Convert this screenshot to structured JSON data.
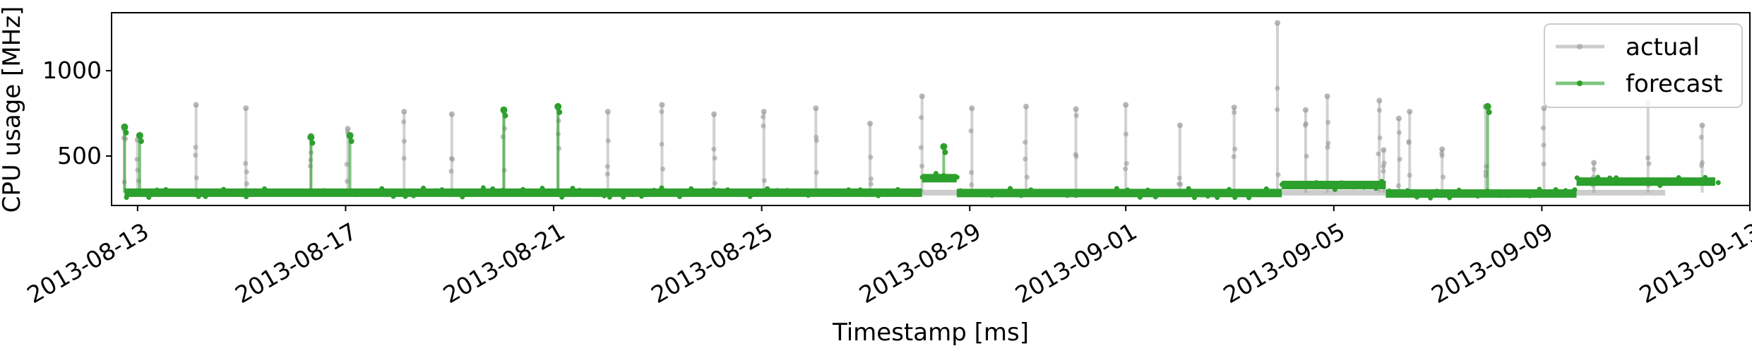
{
  "chart_data": {
    "type": "line",
    "xlabel": "Timestamp [ms]",
    "ylabel": "CPU usage [MHz]",
    "x_range": [
      "2013-08-12T12:00",
      "2013-09-13T00:00"
    ],
    "ylim": [
      210,
      1340
    ],
    "x_ticks": [
      "2013-08-13",
      "2013-08-17",
      "2013-08-21",
      "2013-08-25",
      "2013-08-29",
      "2013-09-01",
      "2013-09-05",
      "2013-09-09",
      "2013-09-13"
    ],
    "y_ticks": [
      500,
      1000
    ],
    "grid": false,
    "legend": {
      "position": "top-right",
      "entries": [
        "actual",
        "forecast"
      ]
    },
    "series": [
      {
        "name": "actual",
        "color": "#999999",
        "baseline": 285,
        "spikes": [
          {
            "x": "2013-08-12T18:00",
            "y": 655
          },
          {
            "x": "2013-08-13T00:00",
            "y": 595
          },
          {
            "x": "2013-08-14T03:00",
            "y": 800
          },
          {
            "x": "2013-08-15T02:00",
            "y": 780
          },
          {
            "x": "2013-08-16T08:00",
            "y": 620
          },
          {
            "x": "2013-08-17T01:00",
            "y": 660
          },
          {
            "x": "2013-08-18T03:00",
            "y": 760
          },
          {
            "x": "2013-08-19T01:00",
            "y": 745
          },
          {
            "x": "2013-08-20T01:00",
            "y": 760
          },
          {
            "x": "2013-08-21T02:00",
            "y": 780
          },
          {
            "x": "2013-08-22T01:00",
            "y": 760
          },
          {
            "x": "2013-08-23T02:00",
            "y": 800
          },
          {
            "x": "2013-08-24T02:00",
            "y": 745
          },
          {
            "x": "2013-08-25T01:00",
            "y": 760
          },
          {
            "x": "2013-08-26T01:00",
            "y": 780
          },
          {
            "x": "2013-08-27T02:00",
            "y": 690
          },
          {
            "x": "2013-08-28T02:00",
            "y": 850
          },
          {
            "x": "2013-08-29T01:00",
            "y": 780
          },
          {
            "x": "2013-08-30T02:00",
            "y": 790
          },
          {
            "x": "2013-08-31T01:00",
            "y": 775
          },
          {
            "x": "2013-09-01T00:00",
            "y": 800
          },
          {
            "x": "2013-09-02T01:00",
            "y": 680
          },
          {
            "x": "2013-09-03T02:00",
            "y": 785
          },
          {
            "x": "2013-09-03T22:00",
            "y": 1280
          },
          {
            "x": "2013-09-04T11:00",
            "y": 770
          },
          {
            "x": "2013-09-04T21:00",
            "y": 850
          },
          {
            "x": "2013-09-05T21:00",
            "y": 825
          },
          {
            "x": "2013-09-05T23:00",
            "y": 535
          },
          {
            "x": "2013-09-06T06:00",
            "y": 720
          },
          {
            "x": "2013-09-06T11:00",
            "y": 760
          },
          {
            "x": "2013-09-07T02:00",
            "y": 540
          },
          {
            "x": "2013-09-07T22:00",
            "y": 790
          },
          {
            "x": "2013-09-09T01:00",
            "y": 780
          },
          {
            "x": "2013-09-10T00:00",
            "y": 460
          },
          {
            "x": "2013-09-11T01:00",
            "y": 810
          },
          {
            "x": "2013-09-12T02:00",
            "y": 680
          }
        ]
      },
      {
        "name": "forecast",
        "color": "#2ca02c",
        "segments": [
          {
            "from": "2013-08-12T18:00",
            "to": "2013-08-28T02:00",
            "y": 285
          },
          {
            "from": "2013-08-28T02:00",
            "to": "2013-08-28T18:00",
            "y": 370
          },
          {
            "from": "2013-08-28T18:00",
            "to": "2013-09-04T00:00",
            "y": 283
          },
          {
            "from": "2013-09-04T00:00",
            "to": "2013-09-06T00:00",
            "y": 330
          },
          {
            "from": "2013-09-06T00:00",
            "to": "2013-09-09T16:00",
            "y": 280
          },
          {
            "from": "2013-09-09T16:00",
            "to": "2013-09-12T08:00",
            "y": 350
          }
        ],
        "spikes": [
          {
            "x": "2013-08-12T18:00",
            "y": 670
          },
          {
            "x": "2013-08-13T01:00",
            "y": 620
          },
          {
            "x": "2013-08-16T08:00",
            "y": 610
          },
          {
            "x": "2013-08-17T02:00",
            "y": 620
          },
          {
            "x": "2013-08-20T01:00",
            "y": 770
          },
          {
            "x": "2013-08-21T02:00",
            "y": 790
          },
          {
            "x": "2013-08-28T12:00",
            "y": 555
          },
          {
            "x": "2013-09-07T23:00",
            "y": 790
          }
        ]
      }
    ]
  }
}
